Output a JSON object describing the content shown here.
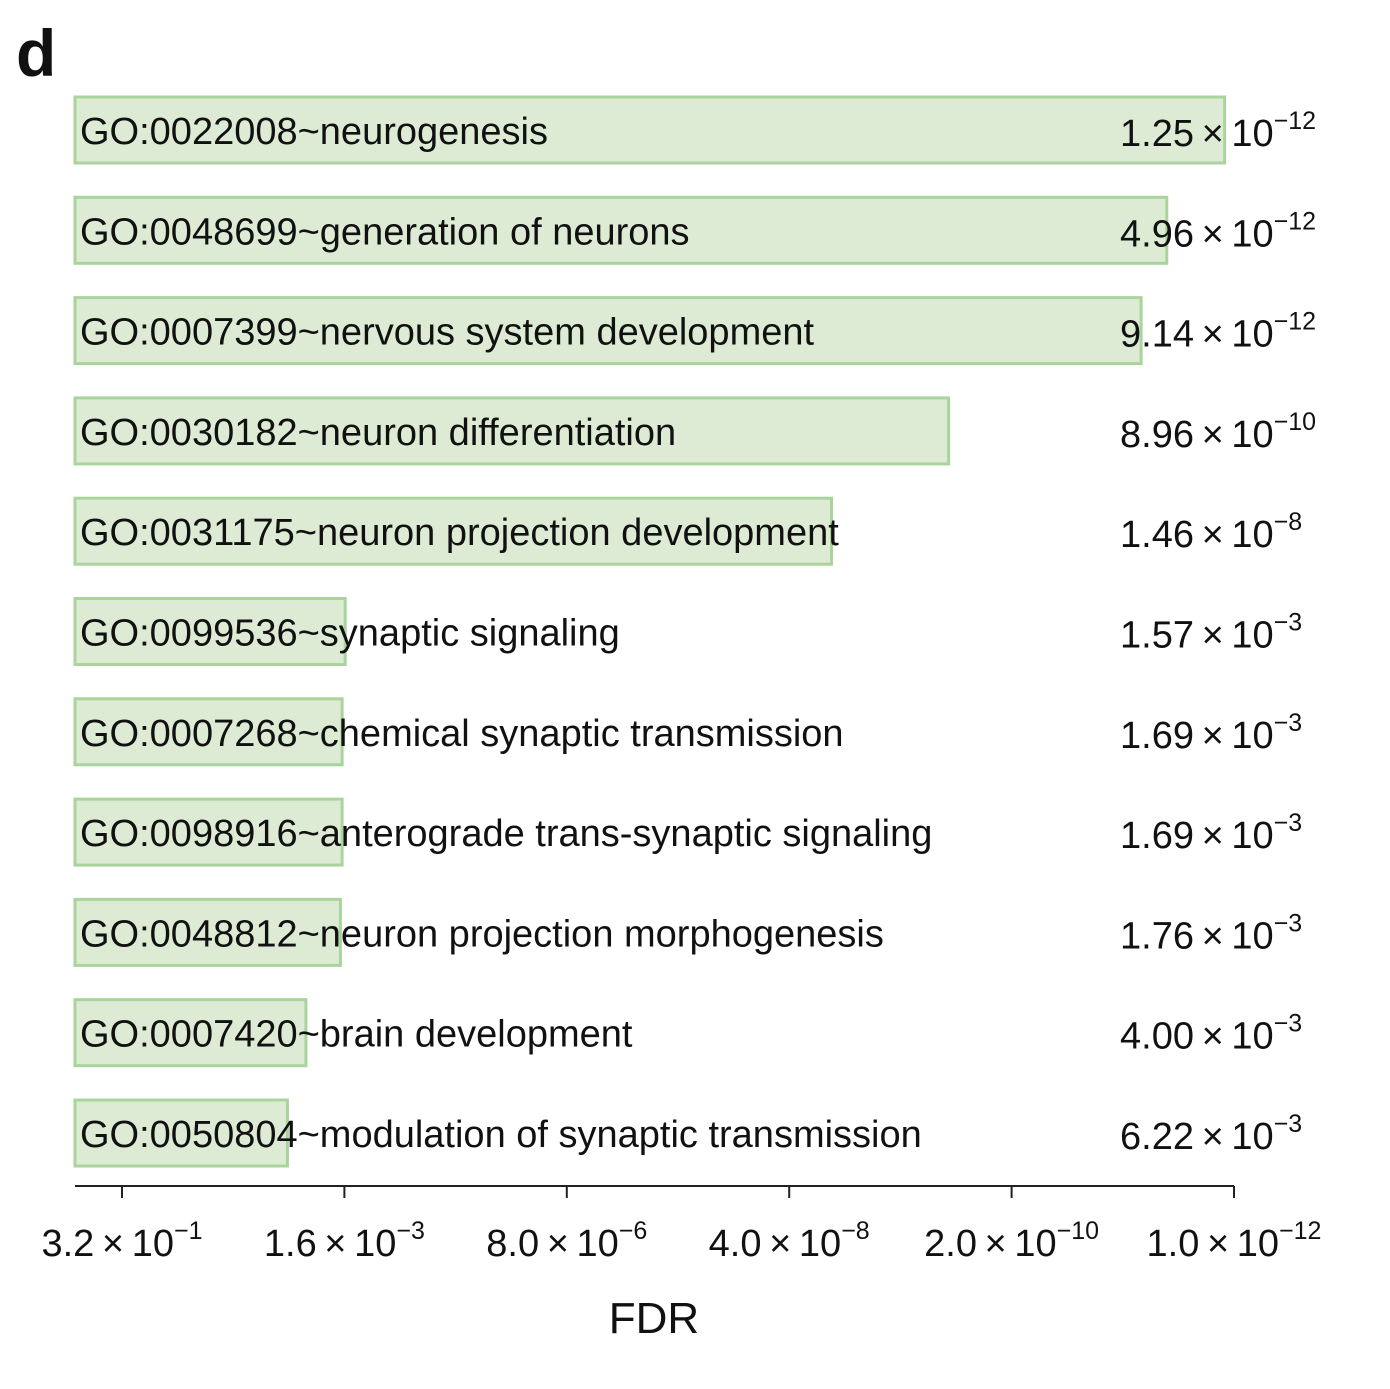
{
  "panel_label": "d",
  "colors": {
    "bar_fill": "#ddebd5",
    "bar_stroke": "#a9d49c",
    "axis": "#222222",
    "text": "#111111"
  },
  "chart_data": {
    "type": "bar",
    "orientation": "horizontal",
    "title": "",
    "xlabel": "FDR",
    "ylabel": "",
    "x_scale": "log",
    "x_reversed": true,
    "xlim": [
      0.32,
      1e-12
    ],
    "x_ticks": [
      {
        "mantissa": "3.2",
        "exponent": "−1",
        "value": 0.32
      },
      {
        "mantissa": "1.6",
        "exponent": "−3",
        "value": 0.0016
      },
      {
        "mantissa": "8.0",
        "exponent": "−6",
        "value": 8e-06
      },
      {
        "mantissa": "4.0",
        "exponent": "−8",
        "value": 4e-08
      },
      {
        "mantissa": "2.0",
        "exponent": "−10",
        "value": 2e-10
      },
      {
        "mantissa": "1.0",
        "exponent": "−12",
        "value": 1e-12
      }
    ],
    "grid": false,
    "legend": "none",
    "categories": [
      "GO:0022008~neurogenesis",
      "GO:0048699~generation of neurons",
      "GO:0007399~nervous system development",
      "GO:0030182~neuron differentiation",
      "GO:0031175~neuron projection development",
      "GO:0099536~synaptic signaling",
      "GO:0007268~chemical synaptic transmission",
      "GO:0098916~anterograde trans-synaptic signaling",
      "GO:0048812~neuron projection morphogenesis",
      "GO:0007420~brain development",
      "GO:0050804~modulation of synaptic transmission"
    ],
    "values": [
      1.25e-12,
      4.96e-12,
      9.14e-12,
      8.96e-10,
      1.46e-08,
      0.00157,
      0.00169,
      0.00169,
      0.00176,
      0.004,
      0.00622
    ],
    "value_labels": [
      {
        "mantissa": "1.25",
        "exponent": "−12"
      },
      {
        "mantissa": "4.96",
        "exponent": "−12"
      },
      {
        "mantissa": "9.14",
        "exponent": "−12"
      },
      {
        "mantissa": "8.96",
        "exponent": "−10"
      },
      {
        "mantissa": "1.46",
        "exponent": "−8"
      },
      {
        "mantissa": "1.57",
        "exponent": "−3"
      },
      {
        "mantissa": "1.69",
        "exponent": "−3"
      },
      {
        "mantissa": "1.69",
        "exponent": "−3"
      },
      {
        "mantissa": "1.76",
        "exponent": "−3"
      },
      {
        "mantissa": "4.00",
        "exponent": "−3"
      },
      {
        "mantissa": "6.22",
        "exponent": "−3"
      }
    ],
    "times_symbol": "×",
    "power_base": "10"
  }
}
